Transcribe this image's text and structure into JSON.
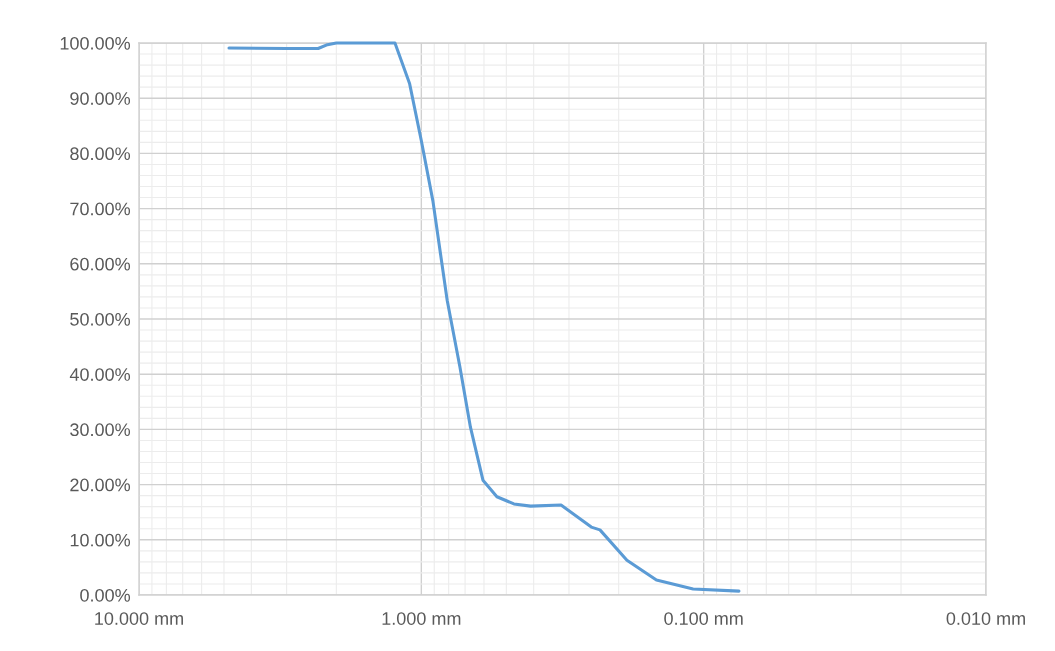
{
  "chart_data": {
    "type": "line",
    "x": [
      4.8,
      3.0,
      2.32,
      2.15,
      2.0,
      1.5,
      1.24,
      1.1,
      1.0,
      0.91,
      0.81,
      0.73,
      0.67,
      0.605,
      0.54,
      0.47,
      0.41,
      0.32,
      0.25,
      0.233,
      0.187,
      0.147,
      0.109,
      0.075
    ],
    "series": [
      {
        "color": "#5b9bd5",
        "values": [
          99.1,
          99.0,
          99.0,
          99.7,
          100,
          100,
          100,
          92.6,
          82.3,
          71.4,
          53.4,
          41.3,
          30.4,
          20.8,
          17.8,
          16.5,
          16.1,
          16.3,
          12.3,
          11.8,
          6.3,
          2.7,
          1.1,
          0.7
        ]
      }
    ],
    "log": "x",
    "xlim": [
      10,
      0.01
    ],
    "xticks": [
      {
        "value": 10,
        "label": "10.000 mm"
      },
      {
        "value": 1,
        "label": "1.000 mm"
      },
      {
        "value": 0.1,
        "label": "0.100 mm"
      },
      {
        "value": 0.01,
        "label": "0.010 mm"
      }
    ],
    "ylim": [
      0,
      100
    ],
    "yticks": [
      {
        "value": 0,
        "label": "0.00%"
      },
      {
        "value": 10,
        "label": "10.00%"
      },
      {
        "value": 20,
        "label": "20.00%"
      },
      {
        "value": 30,
        "label": "30.00%"
      },
      {
        "value": 40,
        "label": "40.00%"
      },
      {
        "value": 50,
        "label": "50.00%"
      },
      {
        "value": 60,
        "label": "60.00%"
      },
      {
        "value": 70,
        "label": "70.00%"
      },
      {
        "value": 80,
        "label": "80.00%"
      },
      {
        "value": 90,
        "label": "90.00%"
      },
      {
        "value": 100,
        "label": "100.00%"
      }
    ],
    "grid": true,
    "marker": "none",
    "line_style": "solid"
  }
}
